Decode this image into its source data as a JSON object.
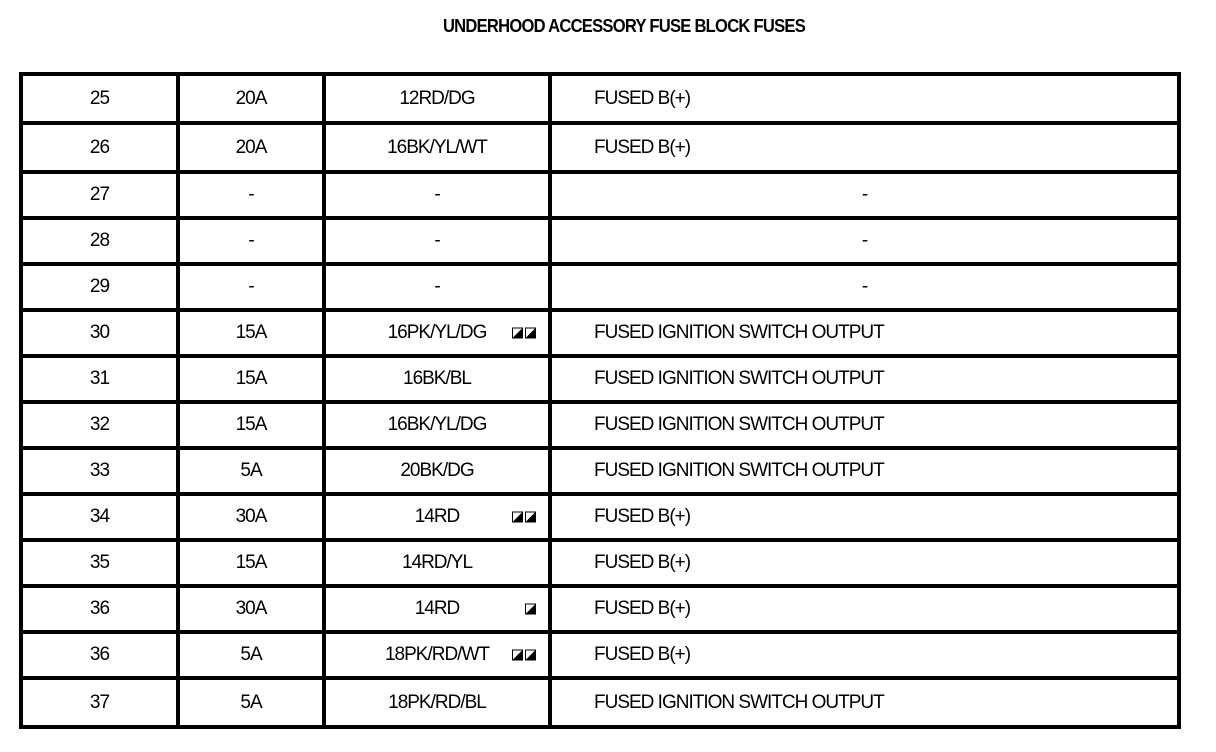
{
  "title": "UNDERHOOD ACCESSORY FUSE BLOCK FUSES",
  "rows": [
    {
      "cavity": "25",
      "fuse": "20A",
      "circuit": "12RD/DG",
      "icons": 0,
      "function": "FUSED B(+)"
    },
    {
      "cavity": "26",
      "fuse": "20A",
      "circuit": "16BK/YL/WT",
      "icons": 0,
      "function": "FUSED B(+)"
    },
    {
      "cavity": "27",
      "fuse": "-",
      "circuit": "-",
      "icons": 0,
      "function": "-"
    },
    {
      "cavity": "28",
      "fuse": "-",
      "circuit": "-",
      "icons": 0,
      "function": "-"
    },
    {
      "cavity": "29",
      "fuse": "-",
      "circuit": "-",
      "icons": 0,
      "function": "-"
    },
    {
      "cavity": "30",
      "fuse": "15A",
      "circuit": "16PK/YL/DG",
      "icons": 2,
      "function": "FUSED IGNITION SWITCH OUTPUT"
    },
    {
      "cavity": "31",
      "fuse": "15A",
      "circuit": "16BK/BL",
      "icons": 0,
      "function": "FUSED IGNITION SWITCH OUTPUT"
    },
    {
      "cavity": "32",
      "fuse": "15A",
      "circuit": "16BK/YL/DG",
      "icons": 0,
      "function": "FUSED IGNITION SWITCH OUTPUT"
    },
    {
      "cavity": "33",
      "fuse": "5A",
      "circuit": "20BK/DG",
      "icons": 0,
      "function": "FUSED IGNITION SWITCH OUTPUT"
    },
    {
      "cavity": "34",
      "fuse": "30A",
      "circuit": "14RD",
      "icons": 2,
      "function": "FUSED B(+)"
    },
    {
      "cavity": "35",
      "fuse": "15A",
      "circuit": "14RD/YL",
      "icons": 0,
      "function": "FUSED B(+)"
    },
    {
      "cavity": "36",
      "fuse": "30A",
      "circuit": "14RD",
      "icons": 1,
      "function": "FUSED B(+)"
    },
    {
      "cavity": "36",
      "fuse": "5A",
      "circuit": "18PK/RD/WT",
      "icons": 2,
      "function": "FUSED B(+)"
    },
    {
      "cavity": "37",
      "fuse": "5A",
      "circuit": "18PK/RD/BL",
      "icons": 0,
      "function": "FUSED IGNITION SWITCH OUTPUT"
    }
  ],
  "icon_name": "model-variant-icon"
}
